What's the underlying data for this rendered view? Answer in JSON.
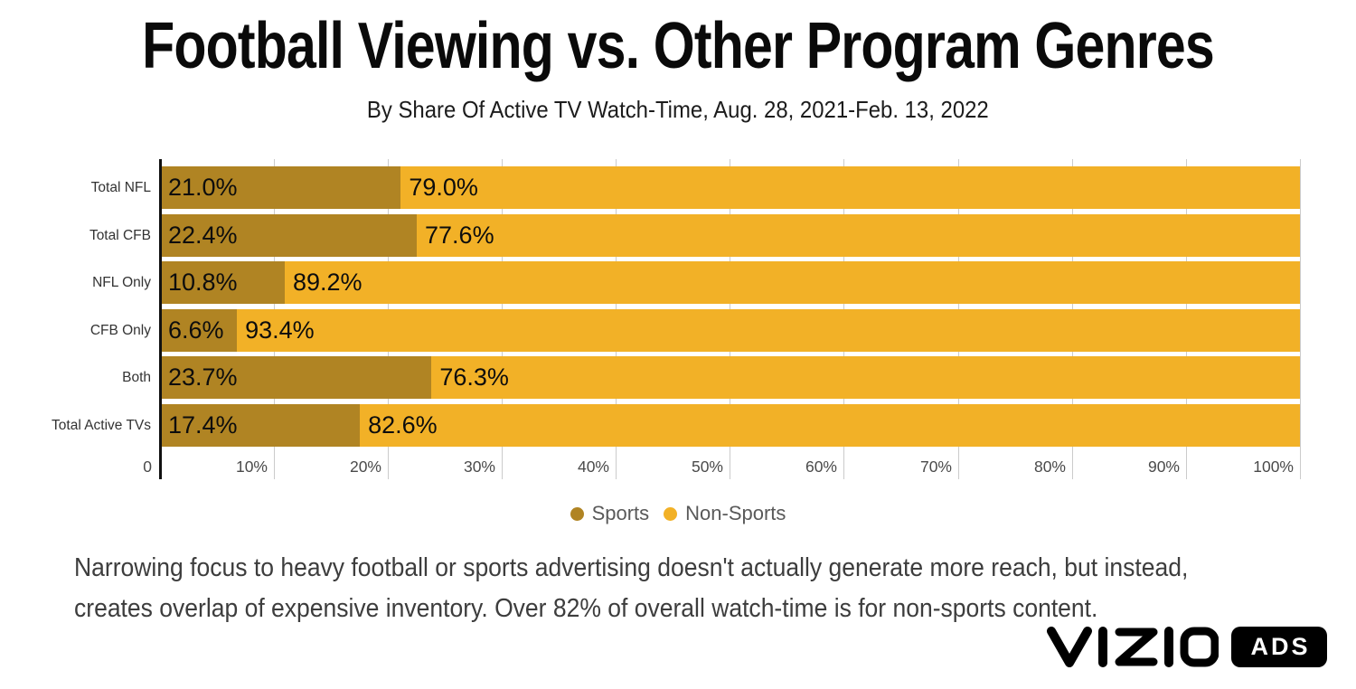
{
  "page": {
    "title": "Football Viewing vs. Other Program Genres",
    "subtitle": "By Share Of Active TV Watch-Time, Aug. 28, 2021-Feb. 13, 2022",
    "insight_line1": "Narrowing focus to heavy football or sports advertising doesn't actually generate more reach, but instead,",
    "insight_line2": "creates overlap of expensive inventory. Over 82% of overall watch-time is for non-sports content.",
    "brand": {
      "wordmark": "VIZIO",
      "badge": "ADS"
    }
  },
  "chart_data": {
    "type": "bar",
    "orientation": "horizontal",
    "stacked": true,
    "grid": true,
    "xlim": [
      0,
      100
    ],
    "x_ticks": [
      "0",
      "10%",
      "20%",
      "30%",
      "40%",
      "50%",
      "60%",
      "70%",
      "80%",
      "90%",
      "100%"
    ],
    "categories": [
      "Total NFL",
      "Total CFB",
      "NFL Only",
      "CFB Only",
      "Both",
      "Total Active TVs"
    ],
    "series": [
      {
        "name": "Sports",
        "color": "#B08423",
        "values": [
          21.0,
          22.4,
          10.8,
          6.6,
          23.7,
          17.4
        ]
      },
      {
        "name": "Non-Sports",
        "color": "#F2B127",
        "values": [
          79.0,
          77.6,
          89.2,
          93.4,
          76.3,
          82.6
        ]
      }
    ],
    "rows": [
      {
        "category": "Total NFL",
        "sports_value": 21.0,
        "non_sports_value": 79.0,
        "sports_label": "21.0%",
        "non_sports_label": "79.0%"
      },
      {
        "category": "Total CFB",
        "sports_value": 22.4,
        "non_sports_value": 77.6,
        "sports_label": "22.4%",
        "non_sports_label": "77.6%"
      },
      {
        "category": "NFL Only",
        "sports_value": 10.8,
        "non_sports_value": 89.2,
        "sports_label": "10.8%",
        "non_sports_label": "89.2%"
      },
      {
        "category": "CFB Only",
        "sports_value": 6.6,
        "non_sports_value": 93.4,
        "sports_label": "6.6%",
        "non_sports_label": "93.4%"
      },
      {
        "category": "Both",
        "sports_value": 23.7,
        "non_sports_value": 76.3,
        "sports_label": "23.7%",
        "non_sports_label": "76.3%"
      },
      {
        "category": "Total Active TVs",
        "sports_value": 17.4,
        "non_sports_value": 82.6,
        "sports_label": "17.4%",
        "non_sports_label": "82.6%"
      }
    ],
    "legend": [
      {
        "label": "Sports",
        "color": "#B08423"
      },
      {
        "label": "Non-Sports",
        "color": "#F2B127"
      }
    ],
    "legend_position": "bottom"
  }
}
